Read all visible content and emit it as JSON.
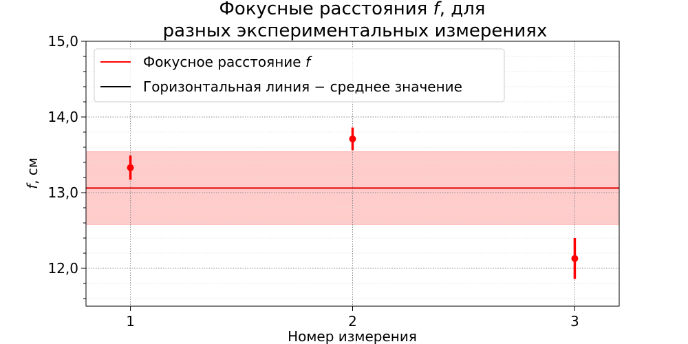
{
  "chart_data": {
    "type": "scatter",
    "title_line1_prefix": "Фокусные расстояния ",
    "title_line1_var": "f",
    "title_line1_suffix": ", для",
    "title_line2": "разных экспериментальных измерениях",
    "xlabel": "Номер измерения",
    "ylabel_var": "f",
    "ylabel_suffix": ", см",
    "xlim": [
      0.8,
      3.2
    ],
    "ylim": [
      11.5,
      15.0
    ],
    "x_ticks": [
      1,
      2,
      3
    ],
    "x_tick_labels": [
      "1",
      "2",
      "3"
    ],
    "y_ticks": [
      12.0,
      13.0,
      14.0,
      15.0
    ],
    "y_tick_labels": [
      "12,0",
      "13,0",
      "14,0",
      "15,0"
    ],
    "y_minor_step": 0.2,
    "grid": true,
    "points": [
      {
        "x": 1,
        "y": 13.33,
        "err": 0.16
      },
      {
        "x": 2,
        "y": 13.71,
        "err": 0.15
      },
      {
        "x": 3,
        "y": 12.13,
        "err": 0.27
      }
    ],
    "mean": 13.06,
    "band": [
      12.58,
      13.54
    ],
    "legend_position": "top-left",
    "legend": [
      {
        "label_prefix": "Фокусное расстояние ",
        "label_var": "f",
        "color": "#ff0000"
      },
      {
        "label_prefix": "Горизонтальная линия − среднее значение",
        "label_var": "",
        "color": "#000000"
      }
    ],
    "colors": {
      "points": "#ff0000",
      "mean_line": "#dd0000",
      "band": "#ffcccc",
      "band_edge": "#ffaaaa"
    }
  }
}
